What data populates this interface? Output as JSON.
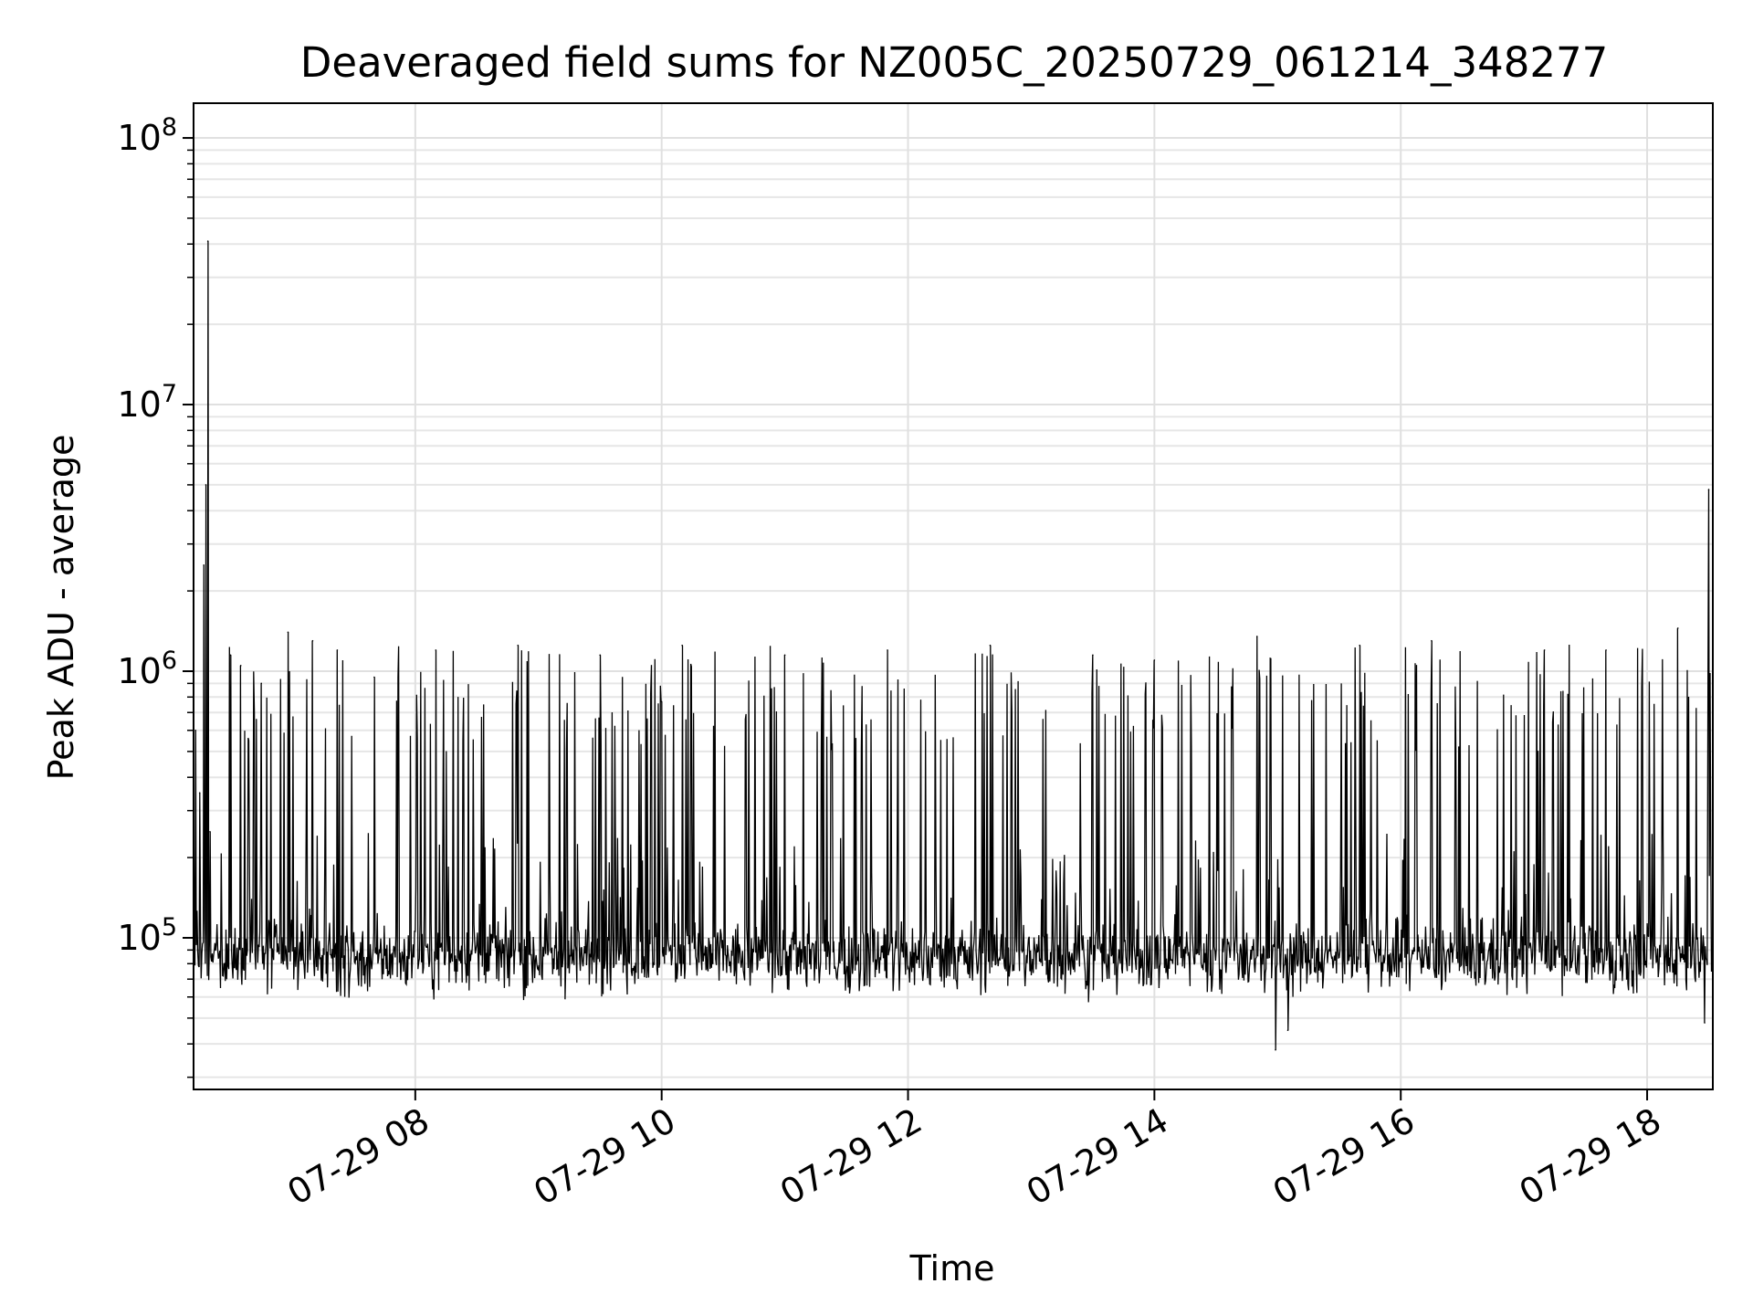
{
  "chart_data": {
    "type": "line",
    "title": "Deaveraged field sums for NZ005C_20250729_061214_348277",
    "xlabel": "Time",
    "ylabel": "Peak ADU - average",
    "yscale": "log",
    "ylim": [
      27000,
      135000000
    ],
    "xlim": [
      "2025-07-29 06:12",
      "2025-07-29 18:32"
    ],
    "x_ticks": [
      {
        "t": "2025-07-29 08:00",
        "label": "07-29 08"
      },
      {
        "t": "2025-07-29 10:00",
        "label": "07-29 10"
      },
      {
        "t": "2025-07-29 12:00",
        "label": "07-29 12"
      },
      {
        "t": "2025-07-29 14:00",
        "label": "07-29 14"
      },
      {
        "t": "2025-07-29 16:00",
        "label": "07-29 16"
      },
      {
        "t": "2025-07-29 18:00",
        "label": "07-29 18"
      }
    ],
    "y_ticks": [
      {
        "value": 100000,
        "base": "10",
        "exp": "5"
      },
      {
        "value": 1000000,
        "base": "10",
        "exp": "6"
      },
      {
        "value": 10000000,
        "base": "10",
        "exp": "7"
      },
      {
        "value": 100000000,
        "base": "10",
        "exp": "8"
      }
    ],
    "grid": true,
    "series": [
      {
        "color": "#000000",
        "baseline": 85000,
        "points": [
          {
            "x": "2025-07-29 06:12",
            "y": 450000
          },
          {
            "x": "2025-07-29 06:13",
            "y": 600000
          },
          {
            "x": "2025-07-29 06:14",
            "y": 90000
          },
          {
            "x": "2025-07-29 06:15",
            "y": 350000
          },
          {
            "x": "2025-07-29 06:17",
            "y": 2500000
          },
          {
            "x": "2025-07-29 06:18",
            "y": 5000000
          },
          {
            "x": "2025-07-29 06:19",
            "y": 41000000
          },
          {
            "x": "2025-07-29 06:20",
            "y": 250000
          },
          {
            "x": "2025-07-29 06:30",
            "y": 1150000
          },
          {
            "x": "2025-07-29 06:35",
            "y": 1050000
          },
          {
            "x": "2025-07-29 06:45",
            "y": 900000
          },
          {
            "x": "2025-07-29 06:58",
            "y": 1400000
          },
          {
            "x": "2025-07-29 07:10",
            "y": 1300000
          },
          {
            "x": "2025-07-29 07:22",
            "y": 1200000
          },
          {
            "x": "2025-07-29 07:40",
            "y": 950000
          },
          {
            "x": "2025-07-29 08:10",
            "y": 1200000
          },
          {
            "x": "2025-07-29 08:50",
            "y": 1250000
          },
          {
            "x": "2025-07-29 09:30",
            "y": 1150000
          },
          {
            "x": "2025-07-29 10:10",
            "y": 1250000
          },
          {
            "x": "2025-07-29 11:00",
            "y": 1150000
          },
          {
            "x": "2025-07-29 11:50",
            "y": 1200000
          },
          {
            "x": "2025-07-29 12:40",
            "y": 1250000
          },
          {
            "x": "2025-07-29 13:30",
            "y": 1150000
          },
          {
            "x": "2025-07-29 14:00",
            "y": 1100000
          },
          {
            "x": "2025-07-29 14:50",
            "y": 1350000
          },
          {
            "x": "2025-07-29 14:59",
            "y": 38000
          },
          {
            "x": "2025-07-29 15:05",
            "y": 45000
          },
          {
            "x": "2025-07-29 15:40",
            "y": 1250000
          },
          {
            "x": "2025-07-29 16:15",
            "y": 1300000
          },
          {
            "x": "2025-07-29 17:10",
            "y": 1200000
          },
          {
            "x": "2025-07-29 17:40",
            "y": 1200000
          },
          {
            "x": "2025-07-29 18:15",
            "y": 1450000
          },
          {
            "x": "2025-07-29 18:28",
            "y": 48000
          },
          {
            "x": "2025-07-29 18:30",
            "y": 4800000
          }
        ]
      }
    ]
  }
}
